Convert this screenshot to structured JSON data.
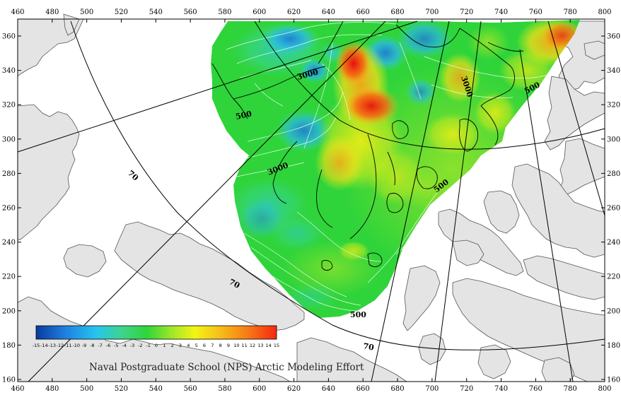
{
  "chart_data": {
    "type": "heatmap",
    "x_ticks": [
      "460",
      "480",
      "500",
      "520",
      "540",
      "560",
      "580",
      "600",
      "620",
      "640",
      "660",
      "680",
      "700",
      "720",
      "740",
      "760",
      "780",
      "800"
    ],
    "y_ticks": [
      "360",
      "340",
      "320",
      "300",
      "280",
      "260",
      "240",
      "220",
      "200",
      "180",
      "160"
    ],
    "colorbar": {
      "labels": [
        "-15",
        "-14",
        "-13",
        "-12",
        "-11",
        "-10",
        "-9",
        "-8",
        "-7",
        "-6",
        "-5",
        "-4",
        "-3",
        "-2",
        "-1",
        "0",
        "1",
        "2",
        "3",
        "4",
        "5",
        "6",
        "7",
        "8",
        "9",
        "10",
        "11",
        "12",
        "13",
        "14",
        "15"
      ],
      "range": [
        -15,
        15
      ],
      "colors": [
        "#0a3a9c",
        "#1e7fe0",
        "#27c4ef",
        "#3fd48a",
        "#2fd43a",
        "#9be62a",
        "#f3f514",
        "#f6c01a",
        "#f77a14",
        "#f42812"
      ]
    },
    "contour_labels": [
      {
        "text": "3000"
      },
      {
        "text": "3000"
      },
      {
        "text": "3000"
      },
      {
        "text": "500"
      },
      {
        "text": "500"
      },
      {
        "text": "500"
      },
      {
        "text": "500"
      }
    ],
    "latitude_labels": [
      {
        "text": "70"
      },
      {
        "text": "70"
      },
      {
        "text": "70"
      }
    ],
    "credit": "Naval Postgraduate School (NPS) Arctic Modeling Effort",
    "land_color": "#e4e4e4",
    "ocean_color": "#ffffff"
  }
}
